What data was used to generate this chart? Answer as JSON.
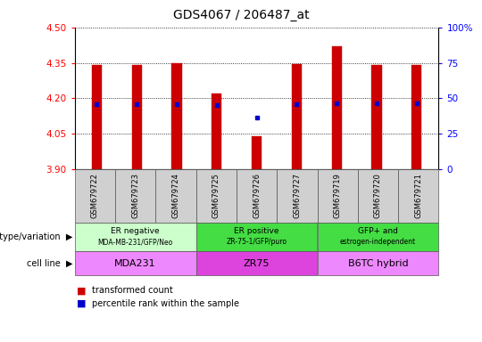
{
  "title": "GDS4067 / 206487_at",
  "samples": [
    "GSM679722",
    "GSM679723",
    "GSM679724",
    "GSM679725",
    "GSM679726",
    "GSM679727",
    "GSM679719",
    "GSM679720",
    "GSM679721"
  ],
  "bar_top": [
    4.34,
    4.34,
    4.35,
    4.22,
    4.04,
    4.345,
    4.42,
    4.34,
    4.34
  ],
  "bar_bottom": 3.9,
  "percentile_y": [
    4.175,
    4.175,
    4.175,
    4.17,
    4.12,
    4.175,
    4.18,
    4.18,
    4.18
  ],
  "ylim": [
    3.9,
    4.5
  ],
  "yticks": [
    3.9,
    4.05,
    4.2,
    4.35,
    4.5
  ],
  "right_yticks_vals": [
    0,
    25,
    50,
    75,
    100
  ],
  "right_ytick_labels": [
    "0",
    "25",
    "50",
    "75",
    "100%"
  ],
  "bar_color": "#cc0000",
  "percentile_color": "#0000cc",
  "bar_width": 0.25,
  "groups": [
    {
      "label_top": "ER negative",
      "label_bot": "MDA-MB-231/GFP/Neo",
      "cell_line": "MDA231",
      "start": 0,
      "end": 3,
      "geno_color": "#ccffcc",
      "cell_color": "#ee88ff"
    },
    {
      "label_top": "ER positive",
      "label_bot": "ZR-75-1/GFP/puro",
      "cell_line": "ZR75",
      "start": 3,
      "end": 6,
      "geno_color": "#44dd44",
      "cell_color": "#dd44dd"
    },
    {
      "label_top": "GFP+ and",
      "label_bot": "estrogen-independent",
      "cell_line": "B6TC hybrid",
      "start": 6,
      "end": 9,
      "geno_color": "#44dd44",
      "cell_color": "#ee88ff"
    }
  ]
}
